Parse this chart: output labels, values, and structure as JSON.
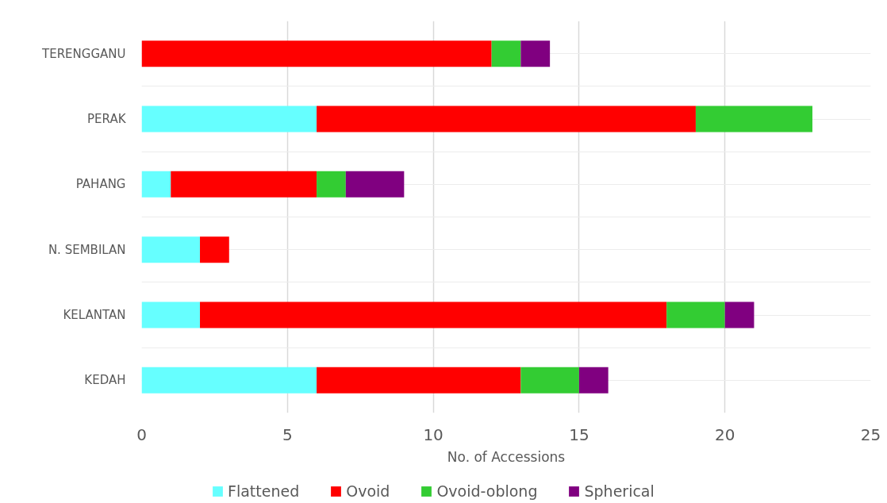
{
  "chart_data": {
    "type": "bar",
    "orientation": "horizontal",
    "stacked": true,
    "xlabel": "No. of Accessions",
    "categories": [
      "TERENGGANU",
      "PERAK",
      "PAHANG",
      "N. SEMBILAN",
      "KELANTAN",
      "KEDAH"
    ],
    "series": [
      {
        "name": "Flattened",
        "color": "#66ffff",
        "values": [
          0,
          6,
          1,
          2,
          2,
          6
        ]
      },
      {
        "name": "Ovoid",
        "color": "#ff0000",
        "values": [
          12,
          13,
          5,
          1,
          16,
          7
        ]
      },
      {
        "name": "Ovoid-oblong",
        "color": "#33cc33",
        "values": [
          1,
          4,
          1,
          0,
          2,
          2
        ]
      },
      {
        "name": "Spherical",
        "color": "#800080",
        "values": [
          1,
          0,
          2,
          0,
          1,
          1
        ]
      }
    ],
    "xlim": [
      0,
      25
    ],
    "xticks": [
      0,
      5,
      10,
      15,
      20,
      25
    ],
    "grid": true,
    "legend": "bottom"
  }
}
